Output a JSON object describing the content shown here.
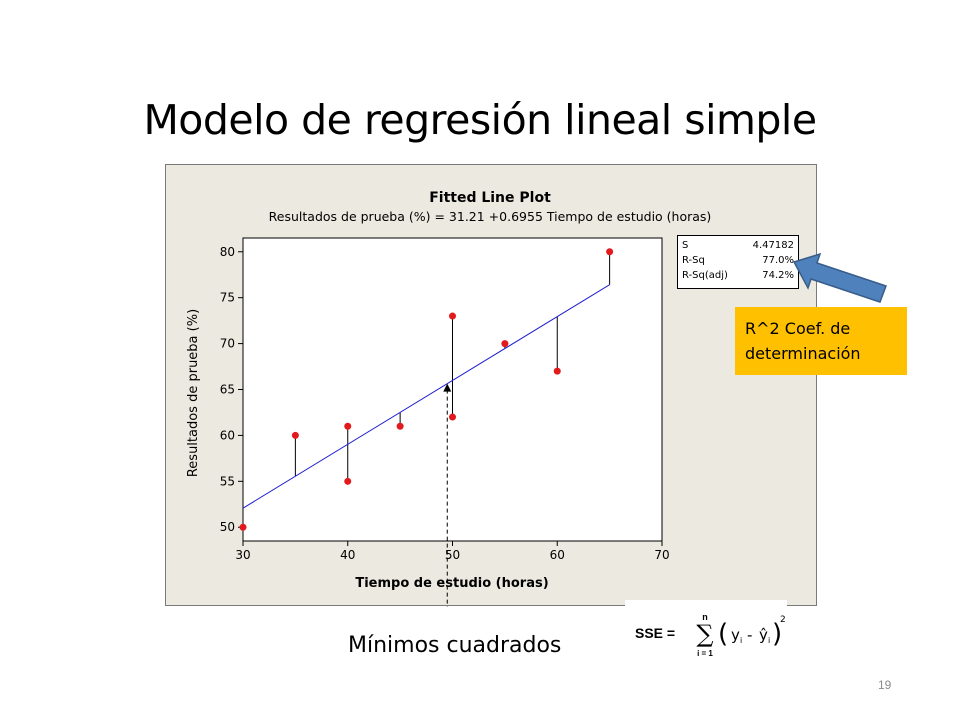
{
  "slide": {
    "title": "Modelo de regresión lineal simple",
    "subtitle": "Mínimos cuadrados",
    "page_number": "19"
  },
  "stats": [
    {
      "label": "S",
      "value": "4.47182"
    },
    {
      "label": "R-Sq",
      "value": "77.0%"
    },
    {
      "label": "R-Sq(adj)",
      "value": "74.2%"
    }
  ],
  "callout": {
    "line1": "R^2 Coef. de",
    "line2": "determinación",
    "color": "#ffc000",
    "arrow_color": "#4f81bd"
  },
  "formula": {
    "lhs": "SSE =",
    "upper": "n",
    "lower": "i = 1",
    "text": "SSE = Σ (yi - ŷi)²"
  },
  "chart_data": {
    "type": "scatter",
    "title": "Fitted Line Plot",
    "subtitle": "Resultados de prueba (%) =  31.21 +0.6955 Tiempo de estudio (horas)",
    "xlabel": "Tiempo de estudio (horas)",
    "ylabel": "Resultados de prueba (%)",
    "xlim": [
      30,
      70
    ],
    "ylim": [
      48.5,
      81.5
    ],
    "xticks": [
      30,
      40,
      50,
      60,
      70
    ],
    "yticks": [
      50,
      55,
      60,
      65,
      70,
      75,
      80
    ],
    "intercept": 31.21,
    "slope": 0.6955,
    "line_x": [
      30,
      65
    ],
    "points": [
      {
        "x": 30,
        "y": 50
      },
      {
        "x": 35,
        "y": 60
      },
      {
        "x": 40,
        "y": 61
      },
      {
        "x": 40,
        "y": 55
      },
      {
        "x": 45,
        "y": 61
      },
      {
        "x": 50,
        "y": 73
      },
      {
        "x": 50,
        "y": 62
      },
      {
        "x": 55,
        "y": 70
      },
      {
        "x": 60,
        "y": 67
      },
      {
        "x": 65,
        "y": 80
      }
    ],
    "marker_x": 49.5,
    "point_color": "#e31a1c",
    "line_color": "#1f1fd0",
    "grid": false
  }
}
